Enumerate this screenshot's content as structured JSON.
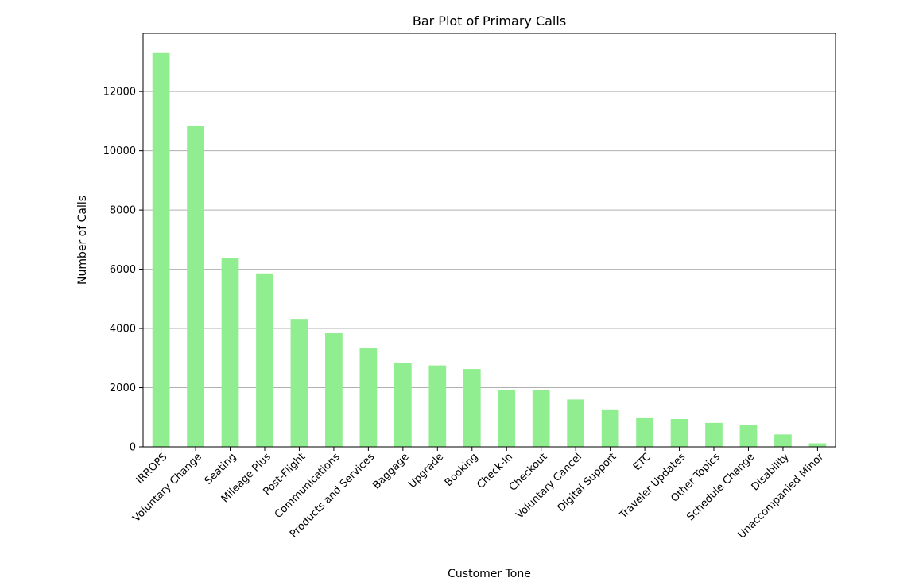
{
  "chart_data": {
    "type": "bar",
    "title": "Bar Plot of Primary Calls",
    "xlabel": "Customer Tone",
    "ylabel": "Number of Calls",
    "categories": [
      "IRROPS",
      "Voluntary Change",
      "Seating",
      "Mileage Plus",
      "Post-Flight",
      "Communications",
      "Products and Services",
      "Baggage",
      "Upgrade",
      "Booking",
      "Check-In",
      "Checkout",
      "Voluntary Cancel",
      "Digital Support",
      "ETC",
      "Traveler Updates",
      "Other Topics",
      "Schedule Change",
      "Disability",
      "Unaccompanied Minor"
    ],
    "values": [
      13300,
      10850,
      6380,
      5860,
      4320,
      3840,
      3330,
      2840,
      2750,
      2630,
      1920,
      1910,
      1600,
      1240,
      970,
      940,
      810,
      730,
      420,
      120
    ],
    "yticks": [
      0,
      2000,
      4000,
      6000,
      8000,
      10000,
      12000
    ],
    "ylim": [
      0,
      13965
    ],
    "grid": "y",
    "bar_color": "#90ee90",
    "grid_color": "#b0b0b0",
    "legend": "none"
  }
}
